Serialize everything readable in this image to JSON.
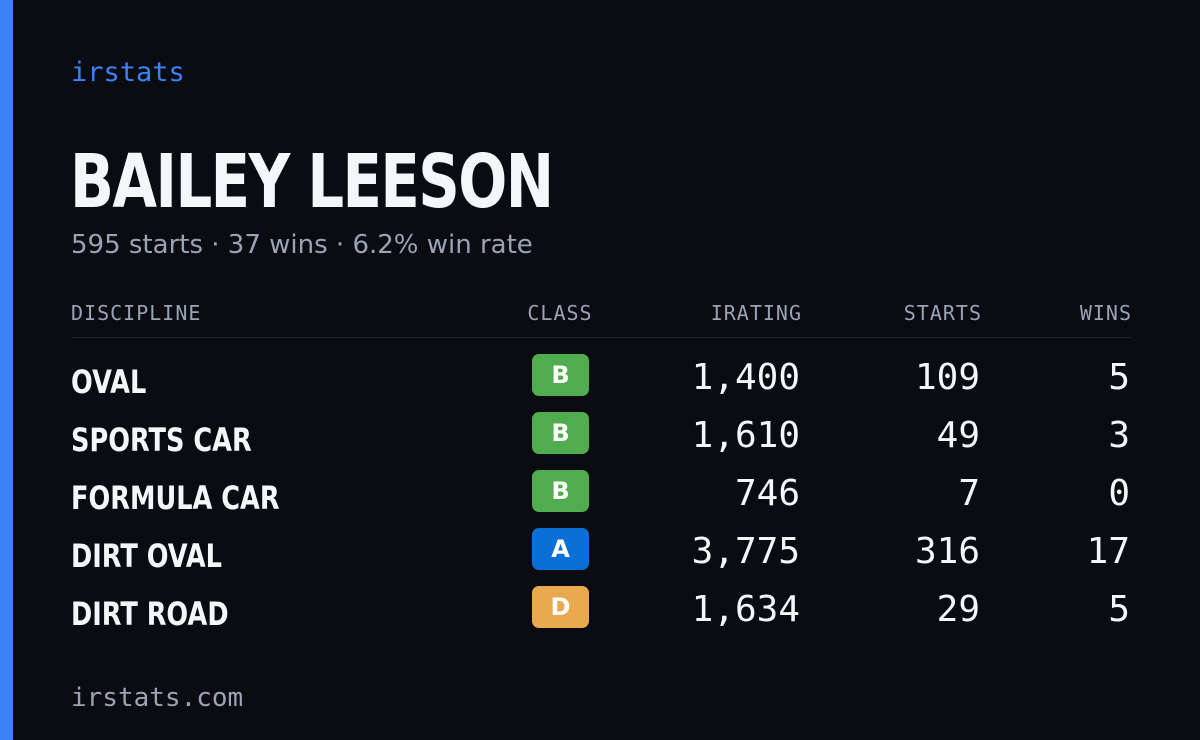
{
  "brand": "irstats",
  "driver": {
    "name": "BAILEY LEESON",
    "summary": "595 starts · 37 wins · 6.2% win rate"
  },
  "table": {
    "headers": {
      "discipline": "DISCIPLINE",
      "class": "CLASS",
      "irating": "IRATING",
      "starts": "STARTS",
      "wins": "WINS"
    },
    "rows": [
      {
        "discipline": "OVAL",
        "class": "B",
        "irating": "1,400",
        "starts": "109",
        "wins": "5"
      },
      {
        "discipline": "SPORTS CAR",
        "class": "B",
        "irating": "1,610",
        "starts": "49",
        "wins": "3"
      },
      {
        "discipline": "FORMULA CAR",
        "class": "B",
        "irating": "746",
        "starts": "7",
        "wins": "0"
      },
      {
        "discipline": "DIRT OVAL",
        "class": "A",
        "irating": "3,775",
        "starts": "316",
        "wins": "17"
      },
      {
        "discipline": "DIRT ROAD",
        "class": "D",
        "irating": "1,634",
        "starts": "29",
        "wins": "5"
      }
    ]
  },
  "class_colors": {
    "A": "#0b6fd8",
    "B": "#4fad4e",
    "D": "#e9aa4f"
  },
  "colors": {
    "accent": "#3b82f6",
    "background": "#0a0c12"
  },
  "footer": "irstats.com"
}
